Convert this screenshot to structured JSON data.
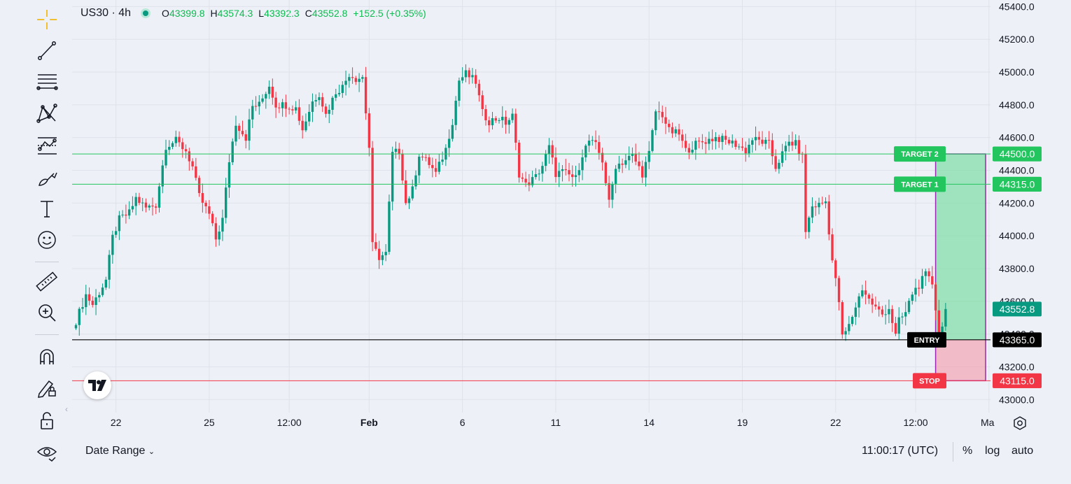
{
  "header": {
    "symbol": "US30 · 4h",
    "open_key": "O",
    "open": "43399.8",
    "high_key": "H",
    "high": "43574.3",
    "low_key": "L",
    "low": "43392.3",
    "close_key": "C",
    "close": "43552.8",
    "change": "+152.5 (+0.35%)"
  },
  "toolbar": {
    "icons": [
      "crosshair-icon",
      "trend-line-icon",
      "fib-retracement-icon",
      "pattern-icon",
      "forecast-icon",
      "brush-icon",
      "text-icon",
      "emoji-icon",
      "ruler-icon",
      "zoom-in-icon",
      "magnet-icon",
      "lock-drawing-icon",
      "unlock-icon",
      "eye-icon"
    ]
  },
  "footer": {
    "date_range": "Date Range",
    "time": "11:00:17 (UTC)",
    "percent": "%",
    "log": "log",
    "auto": "auto"
  },
  "colors": {
    "up": "#089981",
    "down": "#f23645",
    "target": "#22c55e",
    "stop": "#f23645",
    "entry": "#000000",
    "position_box": "#9c27b0"
  },
  "chart_data": {
    "type": "candlestick",
    "symbol": "US30",
    "timeframe": "4h",
    "y_axis": {
      "ticks": [
        43000,
        43200,
        43400,
        43600,
        43800,
        44000,
        44200,
        44400,
        44600,
        44800,
        45000,
        45200,
        45400
      ],
      "tick_labels": [
        "43000.0",
        "43200.0",
        "43400.0",
        "43600.0",
        "43800.0",
        "44000.0",
        "44200.0",
        "44400.0",
        "44600.0",
        "44800.0",
        "45000.0",
        "45200.0",
        "45400.0"
      ],
      "range": [
        42920,
        45440
      ]
    },
    "x_axis": {
      "tick_labels": [
        "22",
        "25",
        "12:00",
        "Feb",
        "6",
        "11",
        "14",
        "19",
        "22",
        "12:00",
        "Ma"
      ],
      "tick_bar_index": [
        12,
        40,
        64,
        88,
        116,
        144,
        172,
        200,
        228,
        252,
        274
      ]
    },
    "price_label": {
      "value": 43552.8,
      "text": "43552.8"
    },
    "levels": [
      {
        "name": "TARGET 2",
        "value": 44500,
        "text": "44500.0",
        "kind": "target"
      },
      {
        "name": "TARGET 1",
        "value": 44315,
        "text": "44315.0",
        "kind": "target"
      },
      {
        "name": "ENTRY",
        "value": 43365,
        "text": "43365.0",
        "kind": "entry"
      },
      {
        "name": "STOP",
        "value": 43115,
        "text": "43115.0",
        "kind": "stop"
      }
    ],
    "position": {
      "entry": 43365,
      "target": 44500,
      "stop": 43115,
      "start_bar": 258,
      "end_bar": 273
    },
    "close_path": [
      [
        0,
        43480
      ],
      [
        3,
        43640
      ],
      [
        5,
        43580
      ],
      [
        9,
        43730
      ],
      [
        11,
        43990
      ],
      [
        13,
        44100
      ],
      [
        16,
        44140
      ],
      [
        18,
        44230
      ],
      [
        21,
        44170
      ],
      [
        24,
        44190
      ],
      [
        27,
        44550
      ],
      [
        30,
        44580
      ],
      [
        33,
        44520
      ],
      [
        35,
        44420
      ],
      [
        37,
        44240
      ],
      [
        40,
        44130
      ],
      [
        42,
        43980
      ],
      [
        44,
        44100
      ],
      [
        46,
        44460
      ],
      [
        48,
        44690
      ],
      [
        51,
        44600
      ],
      [
        53,
        44790
      ],
      [
        55,
        44800
      ],
      [
        58,
        44920
      ],
      [
        60,
        44800
      ],
      [
        63,
        44800
      ],
      [
        66,
        44780
      ],
      [
        68,
        44650
      ],
      [
        71,
        44820
      ],
      [
        73,
        44870
      ],
      [
        75,
        44740
      ],
      [
        78,
        44880
      ],
      [
        80,
        44910
      ],
      [
        82,
        44990
      ],
      [
        84,
        44960
      ],
      [
        86,
        44970
      ],
      [
        88,
        44540
      ],
      [
        89,
        43940
      ],
      [
        91,
        43870
      ],
      [
        93,
        43890
      ],
      [
        95,
        44500
      ],
      [
        97,
        44520
      ],
      [
        99,
        44200
      ],
      [
        101,
        44280
      ],
      [
        103,
        44500
      ],
      [
        106,
        44440
      ],
      [
        108,
        44380
      ],
      [
        111,
        44530
      ],
      [
        113,
        44700
      ],
      [
        115,
        44950
      ],
      [
        117,
        44990
      ],
      [
        120,
        44940
      ],
      [
        122,
        44750
      ],
      [
        124,
        44700
      ],
      [
        127,
        44720
      ],
      [
        129,
        44690
      ],
      [
        131,
        44730
      ],
      [
        133,
        44380
      ],
      [
        135,
        44310
      ],
      [
        138,
        44360
      ],
      [
        140,
        44430
      ],
      [
        142,
        44540
      ],
      [
        144,
        44380
      ],
      [
        146,
        44390
      ],
      [
        148,
        44370
      ],
      [
        150,
        44350
      ],
      [
        152,
        44500
      ],
      [
        154,
        44580
      ],
      [
        156,
        44550
      ],
      [
        158,
        44460
      ],
      [
        160,
        44200
      ],
      [
        162,
        44430
      ],
      [
        164,
        44450
      ],
      [
        167,
        44490
      ],
      [
        170,
        44380
      ],
      [
        172,
        44500
      ],
      [
        174,
        44760
      ],
      [
        176,
        44740
      ],
      [
        178,
        44640
      ],
      [
        181,
        44620
      ],
      [
        183,
        44520
      ],
      [
        186,
        44560
      ],
      [
        189,
        44580
      ],
      [
        192,
        44600
      ],
      [
        195,
        44580
      ],
      [
        198,
        44560
      ],
      [
        201,
        44520
      ],
      [
        203,
        44590
      ],
      [
        205,
        44580
      ],
      [
        208,
        44560
      ],
      [
        210,
        44420
      ],
      [
        212,
        44500
      ],
      [
        214,
        44570
      ],
      [
        216,
        44560
      ],
      [
        218,
        44480
      ],
      [
        219,
        44030
      ],
      [
        221,
        44180
      ],
      [
        223,
        44190
      ],
      [
        225,
        44210
      ],
      [
        227,
        43850
      ],
      [
        229,
        43600
      ],
      [
        230,
        43380
      ],
      [
        232,
        43450
      ],
      [
        234,
        43570
      ],
      [
        236,
        43680
      ],
      [
        238,
        43610
      ],
      [
        240,
        43560
      ],
      [
        242,
        43520
      ],
      [
        244,
        43560
      ],
      [
        246,
        43390
      ],
      [
        247,
        43480
      ],
      [
        249,
        43530
      ],
      [
        251,
        43650
      ],
      [
        253,
        43700
      ],
      [
        255,
        43760
      ],
      [
        257,
        43710
      ],
      [
        258,
        43560
      ],
      [
        259,
        43400
      ],
      [
        260,
        43440
      ],
      [
        261,
        43552.8
      ]
    ]
  }
}
